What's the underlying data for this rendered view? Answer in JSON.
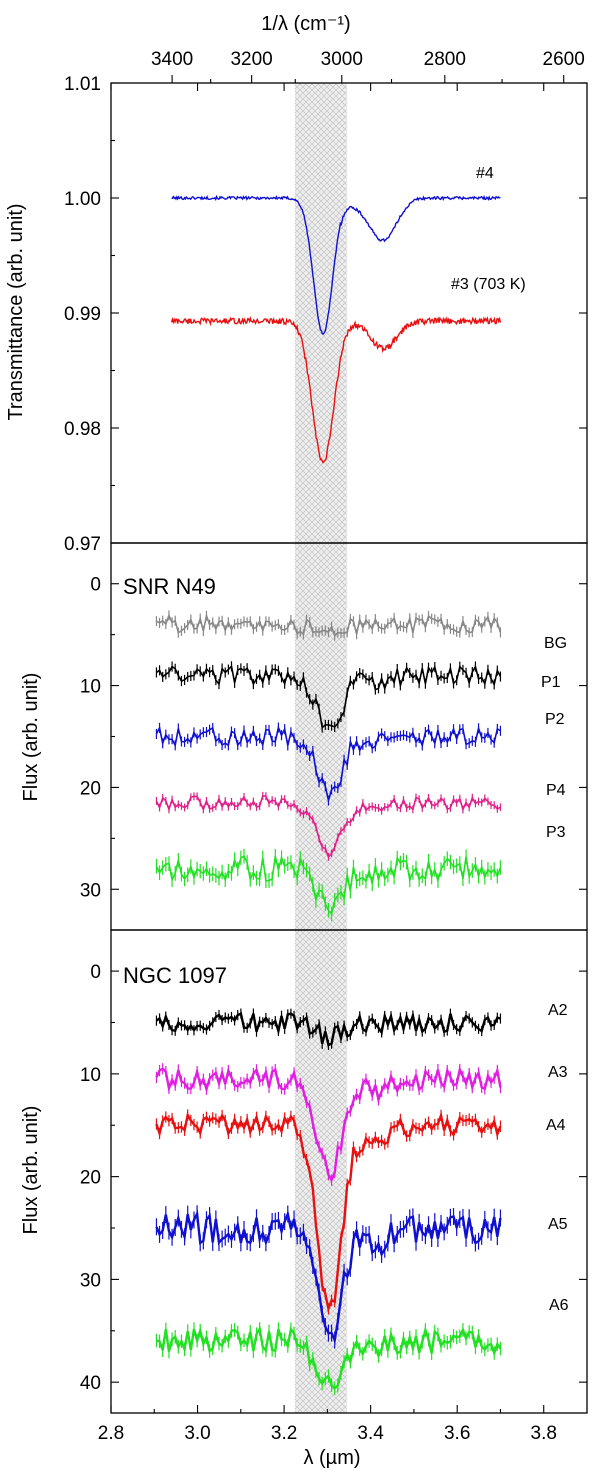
{
  "chart_data": [
    {
      "type": "line",
      "panel": "top",
      "top_axis": {
        "label": "1/λ (cm⁻¹)",
        "ticks": [
          3400,
          3200,
          3000,
          2800,
          2600
        ],
        "tick_labels": [
          "3400",
          "3200",
          "3000",
          "2800",
          "2600"
        ]
      },
      "ylabel": "Transmittance (arb. unit)",
      "ylim": [
        0.97,
        1.01
      ],
      "yticks": [
        0.97,
        0.98,
        0.99,
        1.0,
        1.01
      ],
      "ytick_labels": [
        "0.97",
        "0.98",
        "0.99",
        "1.00",
        "1.01"
      ],
      "x_unit": "µm",
      "series": [
        {
          "name": "#4",
          "label": "#4",
          "color": "#1010d0",
          "baseline": 1.0,
          "noise": 0.00012,
          "absorptions": [
            {
              "center": 3.29,
              "depth": 0.0118,
              "width": 0.022
            },
            {
              "center": 3.43,
              "depth": 0.003,
              "width": 0.03
            }
          ]
        },
        {
          "name": "#3 (703 K)",
          "label": "#3 (703 K)",
          "color": "#e81010",
          "baseline": 0.9893,
          "noise": 0.00025,
          "absorptions": [
            {
              "center": 3.29,
              "depth": 0.0123,
              "width": 0.025
            },
            {
              "center": 3.43,
              "depth": 0.0024,
              "width": 0.03
            }
          ]
        }
      ]
    },
    {
      "type": "line",
      "panel": "middle",
      "title": "SNR N49",
      "ylabel": "Flux (arb. unit)",
      "ylim": [
        34,
        -4
      ],
      "yticks": [
        0,
        10,
        20,
        30
      ],
      "ytick_labels": [
        "0",
        "10",
        "20",
        "30"
      ],
      "series": [
        {
          "name": "BG",
          "label": "BG",
          "color": "#888888",
          "baseline": 4.0,
          "noise": 0.9,
          "feature_depth": 1.0
        },
        {
          "name": "P1",
          "label": "P1",
          "color": "#000000",
          "baseline": 9.0,
          "noise": 0.9,
          "feature_depth": 5.5
        },
        {
          "name": "P2",
          "label": "P2",
          "color": "#1010d0",
          "baseline": 15.0,
          "noise": 0.9,
          "feature_depth": 5.5
        },
        {
          "name": "P4",
          "label": "P4",
          "color": "#e0208a",
          "baseline": 21.5,
          "noise": 0.7,
          "feature_depth": 5.0
        },
        {
          "name": "P3",
          "label": "P3",
          "color": "#22e022",
          "baseline": 28.0,
          "noise": 1.3,
          "feature_depth": 4.0
        }
      ]
    },
    {
      "type": "line",
      "panel": "bottom",
      "title": "NGC 1097",
      "ylabel": "Flux (arb. unit)",
      "ylim": [
        43,
        -4
      ],
      "yticks": [
        0,
        10,
        20,
        30,
        40
      ],
      "ytick_labels": [
        "0",
        "10",
        "20",
        "30",
        "40"
      ],
      "xlabel": "λ (µm)",
      "xlim": [
        2.8,
        3.9
      ],
      "xticks": [
        2.8,
        3.0,
        3.2,
        3.4,
        3.6,
        3.8
      ],
      "xtick_labels": [
        "2.8",
        "3.0",
        "3.2",
        "3.4",
        "3.6",
        "3.8"
      ],
      "highlight_band": [
        3.225,
        3.345
      ],
      "series": [
        {
          "name": "A2",
          "label": "A2",
          "color": "#000000",
          "baseline": 5.0,
          "noise": 0.9,
          "feature_depth": 1.5
        },
        {
          "name": "A3",
          "label": "A3",
          "color": "#e020e0",
          "baseline": 10.5,
          "noise": 1.0,
          "feature_depth": 9.0
        },
        {
          "name": "A4",
          "label": "A4",
          "color": "#e81010",
          "baseline": 15.0,
          "noise": 1.0,
          "feature_depth": 18.0
        },
        {
          "name": "A5",
          "label": "A5",
          "color": "#1010d0",
          "baseline": 25.0,
          "noise": 1.5,
          "feature_depth": 11.0
        },
        {
          "name": "A6",
          "label": "A6",
          "color": "#22e022",
          "baseline": 36.0,
          "noise": 1.2,
          "feature_depth": 4.5
        }
      ]
    }
  ]
}
